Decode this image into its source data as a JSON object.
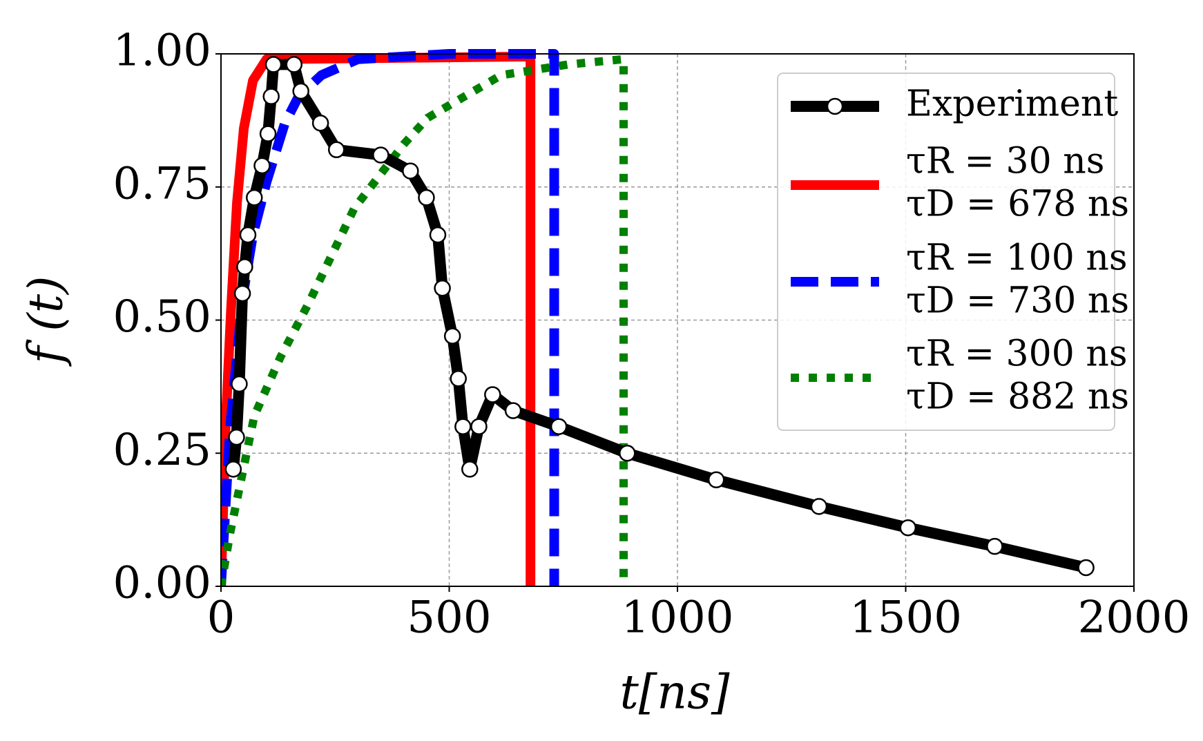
{
  "chart_data": {
    "type": "line",
    "xlabel": "t[ns]",
    "ylabel": "f (t)",
    "xlim": [
      0,
      2000
    ],
    "xticks": [
      0,
      500,
      1000,
      1500,
      2000
    ],
    "ylim": [
      0,
      1
    ],
    "yticks": [
      {
        "value": 0,
        "label": "0.00"
      },
      {
        "value": 0.25,
        "label": "0.25"
      },
      {
        "value": 0.5,
        "label": "0.50"
      },
      {
        "value": 0.75,
        "label": "0.75"
      },
      {
        "value": 1,
        "label": "1.00"
      }
    ],
    "grid": true,
    "legend": "upper right",
    "series": [
      {
        "name": [
          "Experiment"
        ],
        "color": "#000000",
        "style": "solid",
        "markers": true,
        "x": [
          27,
          34,
          40,
          47,
          52,
          59,
          73,
          90,
          103,
          110,
          115,
          160,
          175,
          218,
          253,
          350,
          415,
          450,
          475,
          485,
          507,
          520,
          530,
          545,
          565,
          595,
          640,
          740,
          890,
          1085,
          1310,
          1505,
          1695,
          1895
        ],
        "values": [
          0.22,
          0.28,
          0.38,
          0.55,
          0.6,
          0.66,
          0.73,
          0.79,
          0.85,
          0.92,
          0.98,
          0.98,
          0.93,
          0.87,
          0.82,
          0.81,
          0.78,
          0.73,
          0.66,
          0.56,
          0.47,
          0.39,
          0.3,
          0.22,
          0.3,
          0.36,
          0.33,
          0.3,
          0.25,
          0.2,
          0.15,
          0.11,
          0.075,
          0.035
        ]
      },
      {
        "name": [
          "τR = 30 ns",
          "τD = 678 ns"
        ],
        "color": "#ff0000",
        "style": "solid",
        "markers": false,
        "x": [
          0,
          10,
          22,
          35,
          50,
          70,
          100,
          678,
          678
        ],
        "values": [
          0,
          0.3,
          0.52,
          0.72,
          0.86,
          0.95,
          0.99,
          0.995,
          0
        ]
      },
      {
        "name": [
          "τR = 100 ns",
          "τD = 730 ns"
        ],
        "color": "#0000ff",
        "style": "dashed",
        "markers": false,
        "x": [
          0,
          20,
          47,
          70,
          100,
          140,
          170,
          220,
          300,
          500,
          730,
          730
        ],
        "values": [
          0,
          0.3,
          0.54,
          0.66,
          0.76,
          0.87,
          0.92,
          0.96,
          0.99,
          1.0,
          1.0,
          0
        ]
      },
      {
        "name": [
          "τR = 300 ns",
          "τD = 882 ns"
        ],
        "color": "#008000",
        "style": "dotted",
        "markers": false,
        "x": [
          0,
          20,
          73,
          130,
          191,
          292,
          400,
          453,
          614,
          760,
          882,
          882
        ],
        "values": [
          0,
          0.1,
          0.32,
          0.43,
          0.53,
          0.71,
          0.83,
          0.88,
          0.96,
          0.98,
          0.99,
          0
        ]
      }
    ]
  }
}
